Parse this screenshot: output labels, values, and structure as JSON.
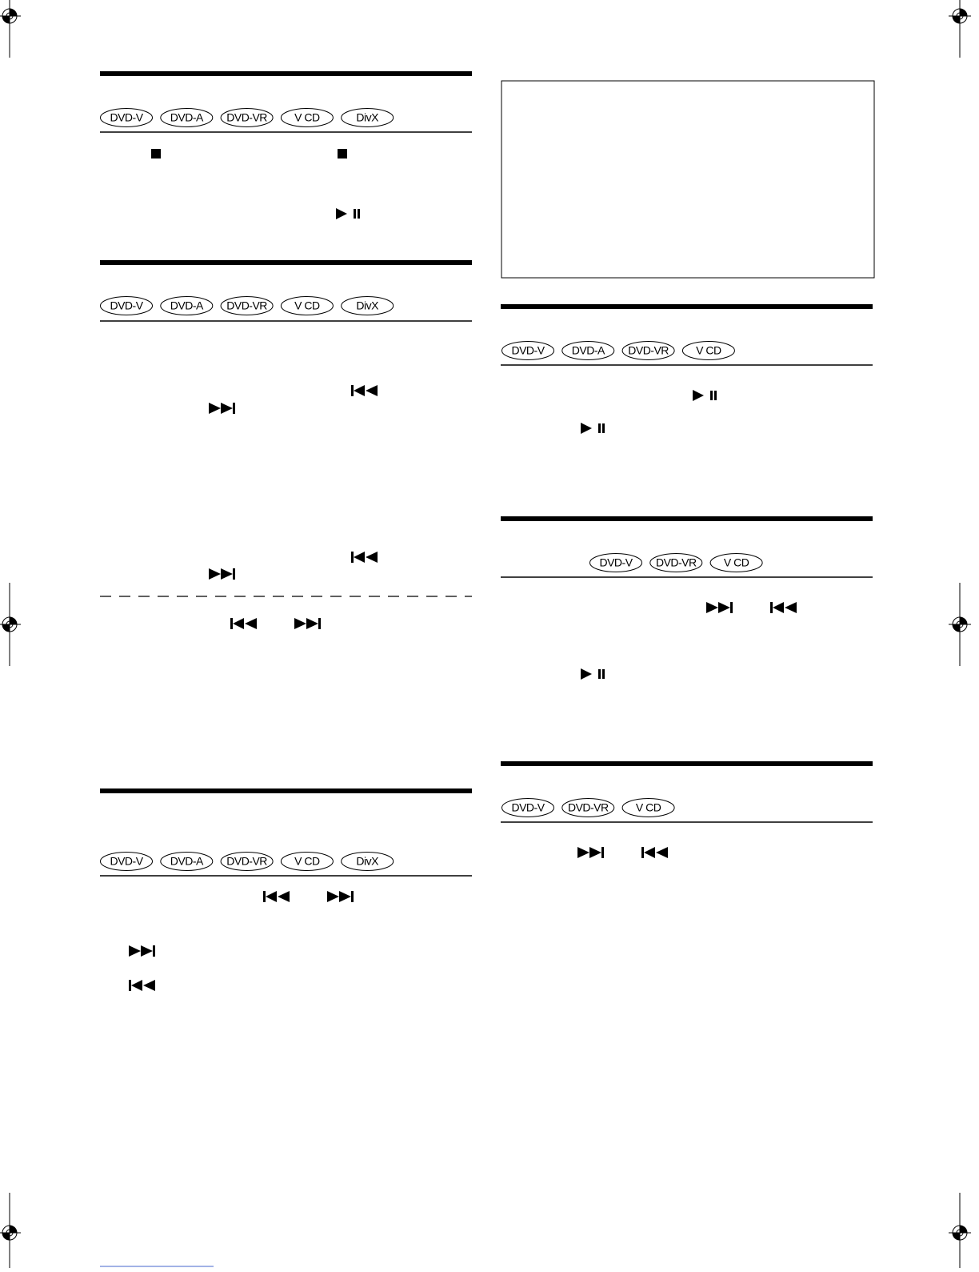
{
  "sections": [
    {
      "badges": [
        "DVD-V",
        "DVD-A",
        "DVD-VR",
        "V CD",
        "DivX"
      ]
    },
    {
      "badges": [
        "DVD-V",
        "DVD-A",
        "DVD-VR",
        "V CD",
        "DivX"
      ]
    },
    {
      "badges": [
        "DVD-V",
        "DVD-A",
        "DVD-VR",
        "V CD",
        "DivX"
      ]
    },
    {
      "badges": [
        "DVD-V",
        "DVD-A",
        "DVD-VR",
        "V CD"
      ]
    },
    {
      "badges": [
        "DVD-V",
        "DVD-VR",
        "V CD"
      ]
    },
    {
      "badges": [
        "DVD-V",
        "DVD-VR",
        "V CD"
      ]
    }
  ]
}
